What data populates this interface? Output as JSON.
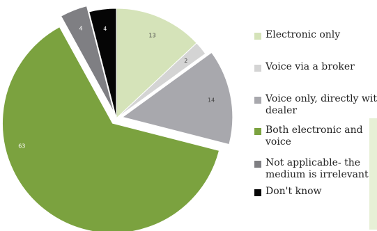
{
  "chart_data": {
    "type": "pie",
    "slices": [
      {
        "label": "Electronic only",
        "value": 13,
        "data_label": "13",
        "color": "#d5e3b9"
      },
      {
        "label": "Voice via a broker",
        "value": 2,
        "data_label": "2",
        "color": "#d4d4d4"
      },
      {
        "label": "Voice only, directly with dealer",
        "value": 14,
        "data_label": "14",
        "color": "#a8a8ad",
        "exploded": true
      },
      {
        "label": "Both electronic and voice",
        "value": 63,
        "data_label": "63",
        "color": "#7ba23f",
        "exploded": true
      },
      {
        "label": "Not applicable- the medium is irrelevant",
        "value": 4,
        "data_label": "4",
        "color": "#7f7f83",
        "exploded": true
      },
      {
        "label": "Don't know",
        "value": 4,
        "data_label": "4",
        "color": "#050505"
      }
    ],
    "legend_position": "right",
    "start_angle_deg": 0,
    "direction": "clockwise"
  }
}
